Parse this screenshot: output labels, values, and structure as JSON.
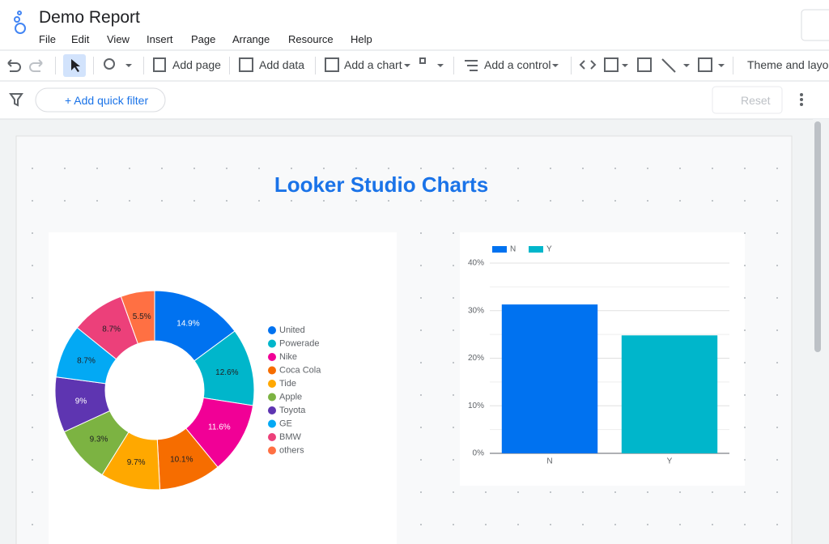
{
  "app": {
    "title": "Demo Report",
    "menu": [
      "File",
      "Edit",
      "View",
      "Insert",
      "Page",
      "Arrange",
      "Resource",
      "Help"
    ],
    "toolbar": [
      "Add page",
      "Add data",
      "Add a chart",
      "Add a control",
      "Theme and layout"
    ],
    "filter_button": "+ Add quick filter",
    "reset_button": "Reset"
  },
  "report_title": "Looker Studio Charts",
  "chart_data": [
    {
      "type": "donut",
      "categories": [
        "United",
        "Powerade",
        "Nike",
        "Coca Cola",
        "Tide",
        "Apple",
        "Toyota",
        "GE",
        "BMW",
        "others"
      ],
      "values": [
        14.9,
        12.6,
        11.6,
        10.1,
        9.7,
        9.3,
        9,
        8.7,
        8.7,
        5.5
      ],
      "value_labels": [
        "14.9%",
        "12.6%",
        "11.6%",
        "10.1%",
        "9.7%",
        "9.3%",
        "9%",
        "8.7%",
        "8.7%",
        "5.5%"
      ],
      "colors": [
        "#0072f0",
        "#00b6cb",
        "#f10096",
        "#f66d00",
        "#ffa800",
        "#7cb342",
        "#5e35b1",
        "#03a9f4",
        "#ec407a",
        "#ff7043"
      ],
      "legend": "right"
    },
    {
      "type": "bar",
      "categories": [
        "N",
        "Y"
      ],
      "values": [
        31.3,
        24.8
      ],
      "colors": [
        "#0072f0",
        "#00b6cb"
      ],
      "ylim": [
        0,
        40
      ],
      "yticks": [
        {
          "value": 0,
          "label": "0%"
        },
        {
          "value": 10,
          "label": "10%"
        },
        {
          "value": 20,
          "label": "20%"
        },
        {
          "value": 30,
          "label": "30%"
        },
        {
          "value": 40,
          "label": "40%"
        }
      ],
      "minor_yticks": [
        5,
        15,
        25,
        35
      ],
      "grid": true,
      "legend": "top-left"
    }
  ]
}
